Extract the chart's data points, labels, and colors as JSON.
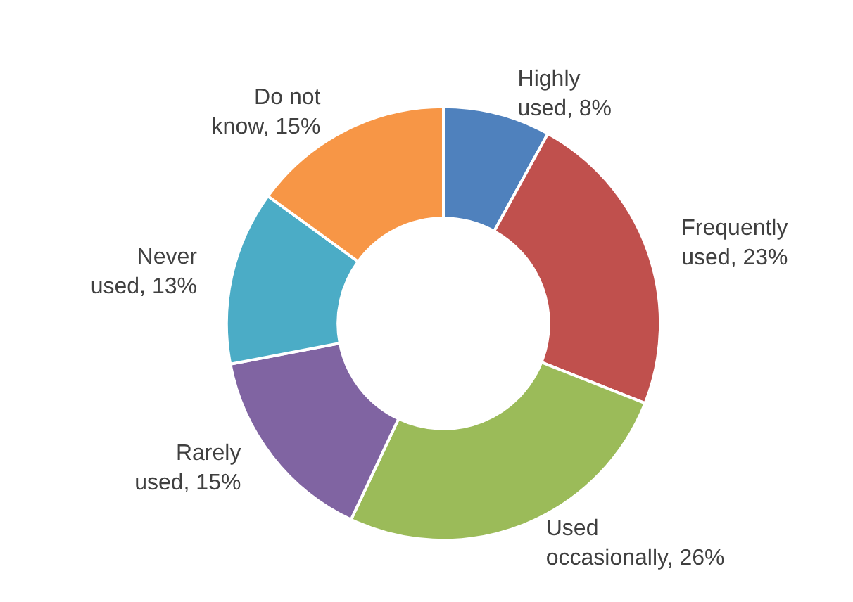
{
  "chart_data": {
    "type": "donut",
    "categories": [
      "Highly used",
      "Frequently used",
      "Used occasionally",
      "Rarely used",
      "Never used",
      "Do not know"
    ],
    "values": [
      8,
      23,
      26,
      15,
      13,
      15
    ],
    "colors": [
      "#4f81bd",
      "#c0504d",
      "#9bbb59",
      "#8064a2",
      "#4bacc6",
      "#f79646"
    ],
    "value_labels": [
      "8%",
      "23%",
      "26%",
      "15%",
      "13%",
      "15%"
    ],
    "legend": false
  }
}
